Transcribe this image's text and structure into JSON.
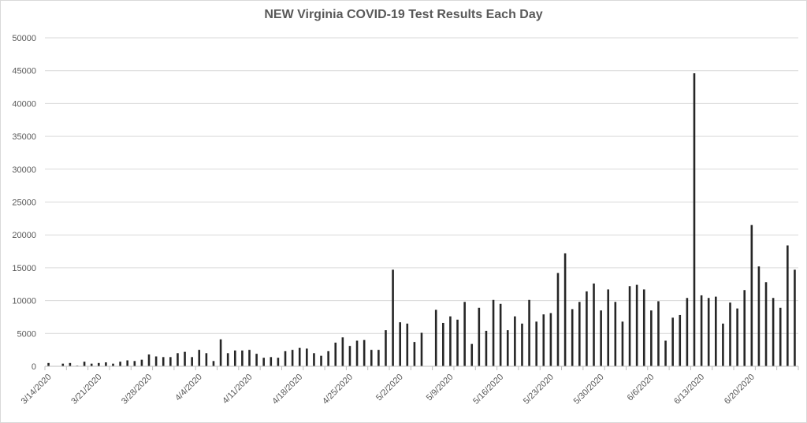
{
  "chart_data": {
    "type": "bar",
    "title": "NEW Virginia COVID-19 Test Results Each Day",
    "xlabel": "",
    "ylabel": "",
    "ylim": [
      0,
      50000
    ],
    "yticks": [
      0,
      5000,
      10000,
      15000,
      20000,
      25000,
      30000,
      35000,
      40000,
      45000,
      50000
    ],
    "grid": true,
    "bar_color": "#262626",
    "x_tick_labels": [
      "3/14/2020",
      "3/21/2020",
      "3/28/2020",
      "4/4/2020",
      "4/11/2020",
      "4/18/2020",
      "4/25/2020",
      "5/2/2020",
      "5/9/2020",
      "5/16/2020",
      "5/23/2020",
      "5/30/2020",
      "6/6/2020",
      "6/13/2020",
      "6/20/2020"
    ],
    "start_date": "3/14/2020",
    "end_date": "6/27/2020",
    "values": [
      500,
      0,
      400,
      500,
      100,
      700,
      400,
      500,
      600,
      400,
      700,
      900,
      800,
      1000,
      1800,
      1500,
      1400,
      1400,
      2000,
      2200,
      1400,
      2500,
      2000,
      800,
      4100,
      2000,
      2400,
      2400,
      2500,
      1900,
      1300,
      1400,
      1300,
      2300,
      2500,
      2800,
      2700,
      2000,
      1600,
      2300,
      3600,
      4400,
      3100,
      3900,
      4000,
      2500,
      2500,
      5500,
      14700,
      6700,
      6500,
      3700,
      5100,
      0,
      8600,
      6600,
      7600,
      7100,
      9800,
      3400,
      8900,
      5400,
      10100,
      9500,
      5500,
      7600,
      6500,
      10100,
      6800,
      7900,
      8100,
      14200,
      17200,
      8700,
      9800,
      11400,
      12600,
      8500,
      11700,
      9800,
      6800,
      12200,
      12400,
      11700,
      8500,
      9900,
      3900,
      7400,
      7800,
      10400,
      44600,
      10800,
      10400,
      10600,
      6500,
      9700,
      8800,
      11600,
      21500,
      15200,
      12800,
      10400,
      8900,
      18400,
      14700
    ]
  }
}
